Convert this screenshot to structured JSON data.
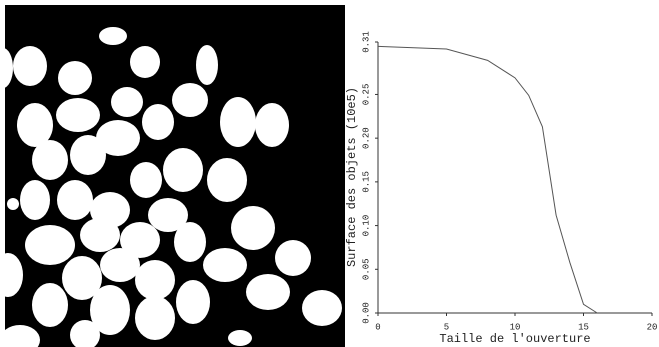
{
  "chart_data": {
    "type": "line",
    "x_label": "Taille de l'ouverture",
    "y_label": "Surface des objets (10e5)",
    "x": [
      0,
      5,
      8,
      10,
      11,
      12,
      13,
      14,
      15,
      16
    ],
    "values": [
      0.305,
      0.302,
      0.289,
      0.269,
      0.249,
      0.213,
      0.112,
      0.058,
      0.01,
      0
    ],
    "color": "#555555",
    "xlim": [
      0,
      20
    ],
    "xticks": [
      0,
      5,
      10,
      15,
      20
    ],
    "ylim": [
      0,
      0.31
    ],
    "yticks": [
      {
        "value": 0,
        "label": "0.00"
      },
      0.05,
      {
        "value": 0.1,
        "label": "0.10"
      },
      0.15,
      {
        "value": 0.2,
        "label": "0.20"
      },
      0.25,
      0.31
    ]
  }
}
